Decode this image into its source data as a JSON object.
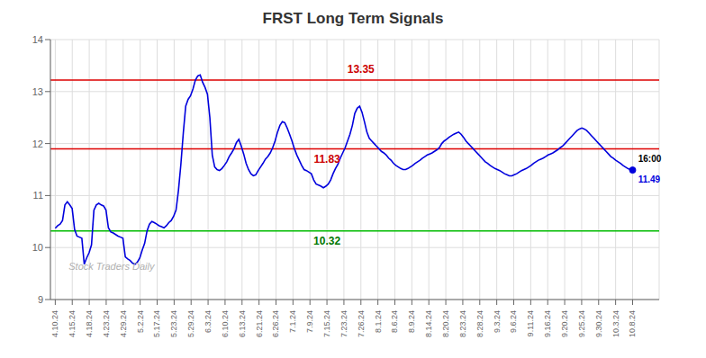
{
  "chart_data": {
    "type": "line",
    "title": "FRST Long Term Signals",
    "color": "#0000dd",
    "values": [
      10.37,
      10.42,
      10.45,
      10.52,
      10.82,
      10.88,
      10.82,
      10.75,
      10.35,
      10.22,
      10.2,
      10.18,
      9.68,
      9.8,
      9.9,
      10.05,
      10.72,
      10.82,
      10.85,
      10.82,
      10.8,
      10.72,
      10.38,
      10.3,
      10.28,
      10.25,
      10.22,
      10.2,
      10.18,
      9.82,
      9.78,
      9.75,
      9.7,
      9.68,
      9.72,
      9.8,
      9.95,
      10.08,
      10.32,
      10.45,
      10.5,
      10.48,
      10.45,
      10.42,
      10.4,
      10.38,
      10.42,
      10.48,
      10.52,
      10.6,
      10.72,
      11.1,
      11.6,
      12.2,
      12.72,
      12.85,
      12.92,
      13.05,
      13.22,
      13.3,
      13.32,
      13.18,
      13.08,
      12.95,
      12.5,
      11.78,
      11.55,
      11.5,
      11.48,
      11.52,
      11.58,
      11.65,
      11.75,
      11.82,
      11.9,
      12.02,
      12.08,
      11.95,
      11.8,
      11.62,
      11.5,
      11.42,
      11.38,
      11.4,
      11.48,
      11.55,
      11.62,
      11.7,
      11.75,
      11.82,
      11.92,
      12.05,
      12.22,
      12.35,
      12.42,
      12.4,
      12.3,
      12.18,
      12.05,
      11.9,
      11.78,
      11.68,
      11.58,
      11.5,
      11.48,
      11.45,
      11.42,
      11.3,
      11.22,
      11.2,
      11.18,
      11.15,
      11.18,
      11.22,
      11.3,
      11.42,
      11.52,
      11.6,
      11.72,
      11.82,
      11.92,
      12.05,
      12.18,
      12.35,
      12.58,
      12.68,
      12.72,
      12.6,
      12.42,
      12.22,
      12.1,
      12.05,
      12.0,
      11.95,
      11.9,
      11.85,
      11.82,
      11.78,
      11.72,
      11.68,
      11.62,
      11.58,
      11.55,
      11.52,
      11.5,
      11.5,
      11.52,
      11.55,
      11.58,
      11.62,
      11.65,
      11.68,
      11.72,
      11.75,
      11.78,
      11.8,
      11.82,
      11.85,
      11.88,
      11.92,
      12.0,
      12.05,
      12.08,
      12.12,
      12.15,
      12.18,
      12.2,
      12.22,
      12.18,
      12.12,
      12.05,
      12.0,
      11.95,
      11.9,
      11.85,
      11.8,
      11.75,
      11.7,
      11.65,
      11.62,
      11.58,
      11.55,
      11.52,
      11.5,
      11.48,
      11.45,
      11.42,
      11.4,
      11.38,
      11.38,
      11.4,
      11.42,
      11.45,
      11.48,
      11.5,
      11.52,
      11.55,
      11.58,
      11.62,
      11.65,
      11.68,
      11.7,
      11.72,
      11.75,
      11.78,
      11.8,
      11.82,
      11.85,
      11.88,
      11.92,
      11.95,
      12.0,
      12.05,
      12.1,
      12.15,
      12.2,
      12.25,
      12.28,
      12.3,
      12.28,
      12.25,
      12.2,
      12.15,
      12.1,
      12.05,
      12.0,
      11.95,
      11.9,
      11.85,
      11.8,
      11.75,
      11.72,
      11.68,
      11.65,
      11.62,
      11.58,
      11.55,
      11.52,
      11.5,
      11.49
    ],
    "xlim": [
      -2,
      250
    ],
    "xticks": [
      {
        "value": 0,
        "label": "4.10.24"
      },
      {
        "value": 7.0294,
        "label": "4.15.24"
      },
      {
        "value": 14.0588,
        "label": "4.18.24"
      },
      {
        "value": 21.0882,
        "label": "4.23.24"
      },
      {
        "value": 28.1176,
        "label": "4.29.24"
      },
      {
        "value": 35.1471,
        "label": "5.2.24"
      },
      {
        "value": 42.1765,
        "label": "5.17.24"
      },
      {
        "value": 49.2059,
        "label": "5.23.24"
      },
      {
        "value": 56.2353,
        "label": "5.29.24"
      },
      {
        "value": 63.2647,
        "label": "6.3.24"
      },
      {
        "value": 70.2941,
        "label": "6.10.24"
      },
      {
        "value": 77.3235,
        "label": "6.13.24"
      },
      {
        "value": 84.3529,
        "label": "6.21.24"
      },
      {
        "value": 91.3824,
        "label": "6.26.24"
      },
      {
        "value": 98.4118,
        "label": "7.1.24"
      },
      {
        "value": 105.4412,
        "label": "7.9.24"
      },
      {
        "value": 112.4706,
        "label": "7.15.24"
      },
      {
        "value": 119.5,
        "label": "7.23.24"
      },
      {
        "value": 126.5294,
        "label": "7.26.24"
      },
      {
        "value": 133.5588,
        "label": "8.1.24"
      },
      {
        "value": 140.5882,
        "label": "8.6.24"
      },
      {
        "value": 147.6176,
        "label": "8.9.24"
      },
      {
        "value": 154.6471,
        "label": "8.14.24"
      },
      {
        "value": 161.6765,
        "label": "8.20.24"
      },
      {
        "value": 168.7059,
        "label": "8.23.24"
      },
      {
        "value": 175.7353,
        "label": "8.28.24"
      },
      {
        "value": 182.7647,
        "label": "9.3.24"
      },
      {
        "value": 189.7941,
        "label": "9.6.24"
      },
      {
        "value": 196.8235,
        "label": "9.11.24"
      },
      {
        "value": 203.8529,
        "label": "9.16.24"
      },
      {
        "value": 210.8824,
        "label": "9.20.24"
      },
      {
        "value": 217.9118,
        "label": "9.25.24"
      },
      {
        "value": 224.9412,
        "label": "9.30.24"
      },
      {
        "value": 231.9706,
        "label": "10.3.24"
      },
      {
        "value": 239,
        "label": "10.8.24"
      }
    ],
    "ylim": [
      9,
      14
    ],
    "yticks": [
      9,
      10,
      11,
      12,
      13,
      14
    ],
    "grid": true,
    "reference_lines": [
      {
        "y": 10.32,
        "color": "#00bb00"
      },
      {
        "y": 13.22,
        "color": "#dd0000"
      },
      {
        "y": 11.9,
        "color": "#dd0000"
      }
    ],
    "annotations": [
      {
        "text": "13.35",
        "x": 126.5294,
        "y": 13.3,
        "color": "#cc0000"
      },
      {
        "text": "11.83",
        "x": 112.4706,
        "y": 11.58,
        "color": "#cc0000"
      },
      {
        "text": "10.32",
        "x": 112.4706,
        "y": 10,
        "color": "#007700"
      },
      {
        "text": "16:00",
        "x": 240.2,
        "y": 11.71,
        "color": "#000000"
      },
      {
        "text": "11.49",
        "x": 240.2,
        "y": 11.31,
        "color": "#0000dd"
      }
    ],
    "watermark": "Stock Traders Daily"
  }
}
